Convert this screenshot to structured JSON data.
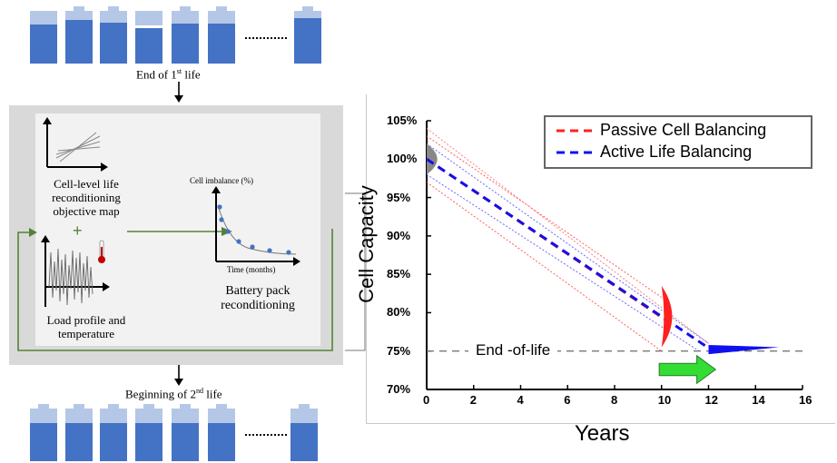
{
  "top_label": {
    "text": "End of 1",
    "sup": "st",
    "suffix": " life"
  },
  "bottom_label": {
    "text": "Beginning of 2",
    "sup": "nd",
    "suffix": " life"
  },
  "top_batteries": [
    0.74,
    0.82,
    0.78,
    0.67,
    0.76,
    0.76,
    0.86
  ],
  "bottom_batteries": [
    0.73,
    0.73,
    0.73,
    0.73,
    0.73,
    0.73,
    0.73
  ],
  "panel": {
    "map_label": "Cell-level life reconditioning objective map",
    "plus": "+",
    "load_label": "Load profile and temperature",
    "imbalance_ylabel": "Cell imbalance (%)",
    "imbalance_xlabel": "Time (months)",
    "pack_label": "Battery pack reconditioning"
  },
  "colors": {
    "battery_fill": "#4472c4",
    "battery_cap": "#b4c7e7",
    "arrow_green": "#548235",
    "passive": "#ff2020",
    "active": "#1010ee",
    "eol_arrow": "#33dd33"
  },
  "chart_data": {
    "type": "line",
    "xlabel": "Years",
    "ylabel": "Cell Capacity",
    "xlim": [
      0,
      16
    ],
    "ylim": [
      70,
      105
    ],
    "xticks": [
      "0",
      "2",
      "4",
      "6",
      "8",
      "10",
      "12",
      "14",
      "16"
    ],
    "yticks": [
      "70%",
      "75%",
      "80%",
      "85%",
      "90%",
      "95%",
      "100%",
      "105%"
    ],
    "series": [
      {
        "name": "Passive Cell Balancing",
        "color": "#ff2020",
        "x": [
          0,
          10.2
        ],
        "y": [
          100,
          79
        ]
      },
      {
        "name": "Active Life Balancing",
        "color": "#1010ee",
        "x": [
          0,
          12.2
        ],
        "y": [
          100,
          75
        ]
      }
    ],
    "eol_label": "End -of-life",
    "eol_value": 75,
    "legend": "top-right"
  }
}
